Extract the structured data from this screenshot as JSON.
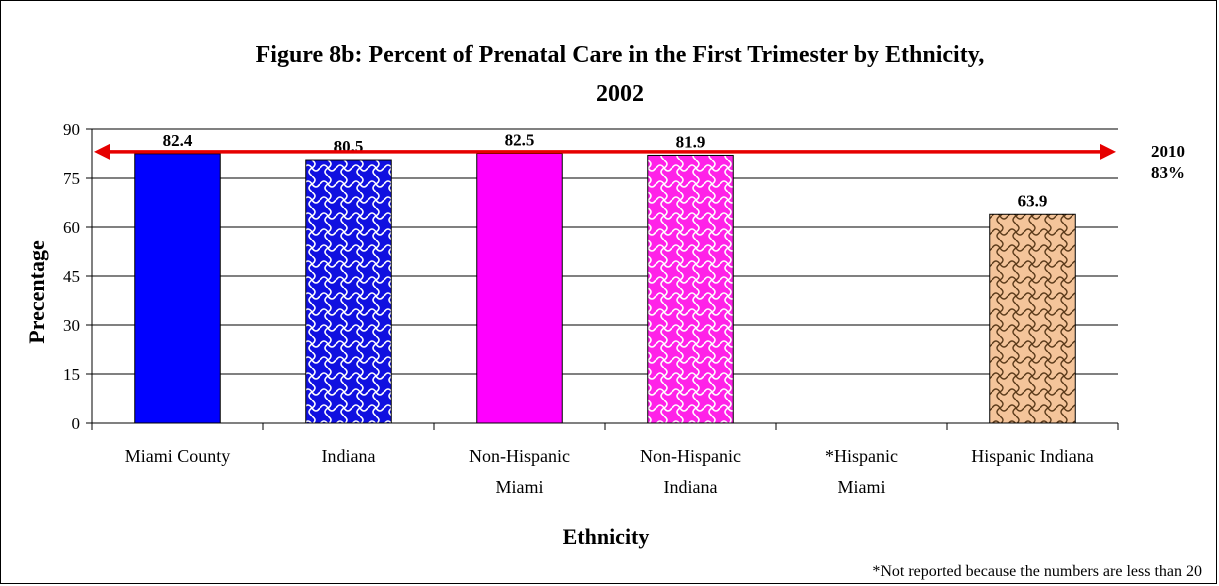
{
  "chart_data": {
    "type": "bar",
    "title": "Figure 8b:  Percent of Prenatal Care in the First Trimester by Ethnicity,",
    "title_line2": "2002",
    "xlabel": "Ethnicity",
    "ylabel": "Precentage",
    "ylim": [
      0,
      90
    ],
    "yticks": [
      0,
      15,
      30,
      45,
      60,
      75,
      90
    ],
    "grid": "horizontal",
    "categories": [
      [
        "Miami County"
      ],
      [
        "Indiana"
      ],
      [
        "Non-Hispanic",
        "Miami"
      ],
      [
        "Non-Hispanic",
        "Indiana"
      ],
      [
        "*Hispanic",
        "Miami"
      ],
      [
        "Hispanic Indiana"
      ]
    ],
    "values": [
      82.4,
      80.5,
      82.5,
      81.9,
      null,
      63.9
    ],
    "data_labels": [
      "82.4",
      "80.5",
      "82.5",
      "81.9",
      "",
      "63.9"
    ],
    "bar_colors": [
      "#0000ff",
      "#2a2ad8",
      "#ff00ff",
      "#ff33e6",
      "#ffffff",
      "#f4c49a"
    ],
    "bar_patterns": [
      "solid",
      "weave-blue",
      "solid",
      "weave-pink",
      "none",
      "weave-tan"
    ],
    "target": {
      "value": 83,
      "label_line1": "2010",
      "label_line2": "83%",
      "color": "#e60000"
    },
    "footnote": "*Not reported because the numbers are less than 20"
  }
}
